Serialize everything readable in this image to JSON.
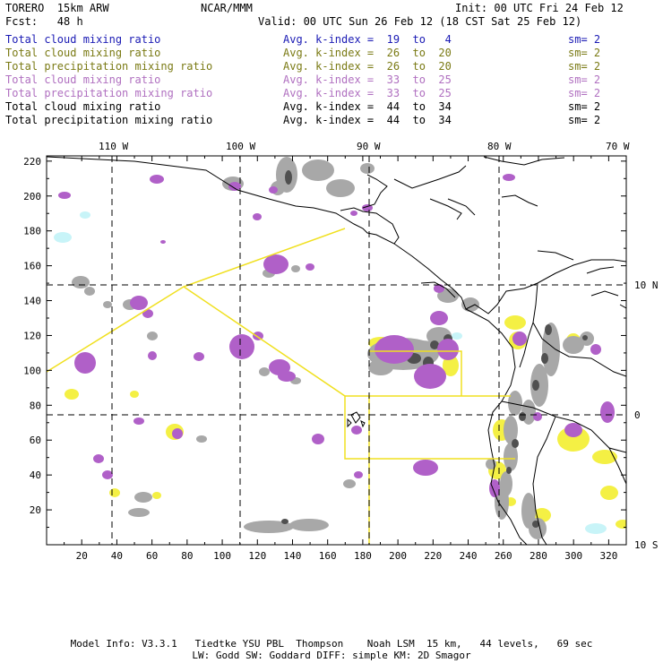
{
  "header": {
    "model": "TORERO  15km ARW",
    "org": "NCAR/MMM",
    "init": "Init: 00 UTC Fri 24 Feb 12",
    "fcst": "Fcst:   48 h",
    "valid": "Valid: 00 UTC Sun 26 Feb 12 (18 CST Sat 25 Feb 12)"
  },
  "legend": [
    {
      "field": "Total cloud mixing ratio",
      "index": "Avg. k-index =  19  to   4",
      "sm": "sm= 2",
      "color": "#1a1ab4"
    },
    {
      "field": "Total cloud mixing ratio",
      "index": "Avg. k-index =  26  to  20",
      "sm": "sm= 2",
      "color": "#7a7a14"
    },
    {
      "field": "Total precipitation mixing ratio",
      "index": "Avg. k-index =  26  to  20",
      "sm": "sm= 2",
      "color": "#7a7a14"
    },
    {
      "field": "Total cloud mixing ratio",
      "index": "Avg. k-index =  33  to  25",
      "sm": "sm= 2",
      "color": "#b070c0"
    },
    {
      "field": "Total precipitation mixing ratio",
      "index": "Avg. k-index =  33  to  25",
      "sm": "sm= 2",
      "color": "#b070c0"
    },
    {
      "field": "Total cloud mixing ratio",
      "index": "Avg. k-index =  44  to  34",
      "sm": "sm= 2",
      "color": "#000000"
    },
    {
      "field": "Total precipitation mixing ratio",
      "index": "Avg. k-index =  44  to  34",
      "sm": "sm= 2",
      "color": "#000000"
    }
  ],
  "map": {
    "x_ticks": [
      20,
      40,
      60,
      80,
      100,
      120,
      140,
      160,
      180,
      200,
      220,
      240,
      260,
      280,
      300,
      320
    ],
    "y_ticks": [
      20,
      40,
      60,
      80,
      100,
      120,
      140,
      160,
      180,
      200,
      220
    ],
    "lon_labels": [
      "110 W",
      "100 W",
      "90 W",
      "80 W",
      "70 W"
    ],
    "lat_labels": [
      "10 N",
      "0",
      "10 S"
    ],
    "colors": {
      "cloud_gray": "#a0a0a0",
      "precip_purple": "#b060c8",
      "cloud_yellow": "#f4f044",
      "cloud_cyan": "#c8f4f8",
      "domain_box": "#f0e020",
      "coast": "#000000"
    }
  },
  "footer": {
    "line1": "Model Info: V3.3.1   Tiedtke YSU PBL  Thompson    Noah LSM  15 km,   44 levels,   69 sec",
    "line2": "LW: Godd SW: Goddard DIFF: simple KM: 2D Smagor"
  }
}
